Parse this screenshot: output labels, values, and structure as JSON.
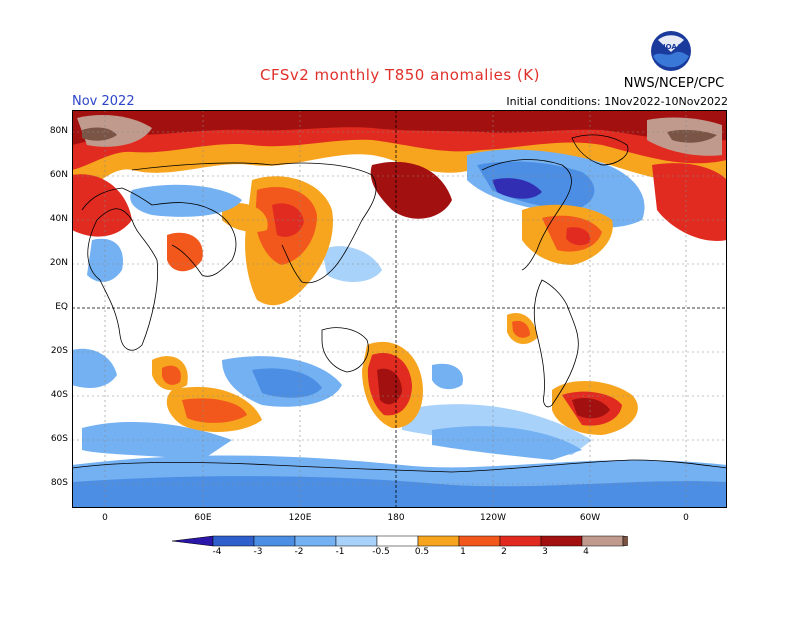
{
  "header": {
    "title": "CFSv2 monthly T850 anomalies (K)",
    "month": "Nov 2022",
    "initial_conditions": "Initial conditions: 1Nov2022-10Nov2022",
    "org": "NWS/NCEP/CPC",
    "logo_text": "NOAA"
  },
  "map": {
    "lat_labels": [
      "80N",
      "60N",
      "40N",
      "20N",
      "EQ",
      "20S",
      "40S",
      "60S",
      "80S"
    ],
    "lon_labels": [
      "0",
      "60E",
      "120E",
      "180",
      "120W",
      "60W",
      "0"
    ]
  },
  "colorbar": {
    "labels": [
      "-4",
      "-3",
      "-2",
      "-1",
      "-0.5",
      "0.5",
      "1",
      "2",
      "3",
      "4"
    ],
    "colors": [
      "#2a16a8",
      "#2f5fcc",
      "#4c8ee3",
      "#74b1f2",
      "#a9d2fb",
      "#ffffff",
      "#f7a51f",
      "#f2581c",
      "#e12b20",
      "#a31010",
      "#c19a8e",
      "#7a5546"
    ]
  }
}
